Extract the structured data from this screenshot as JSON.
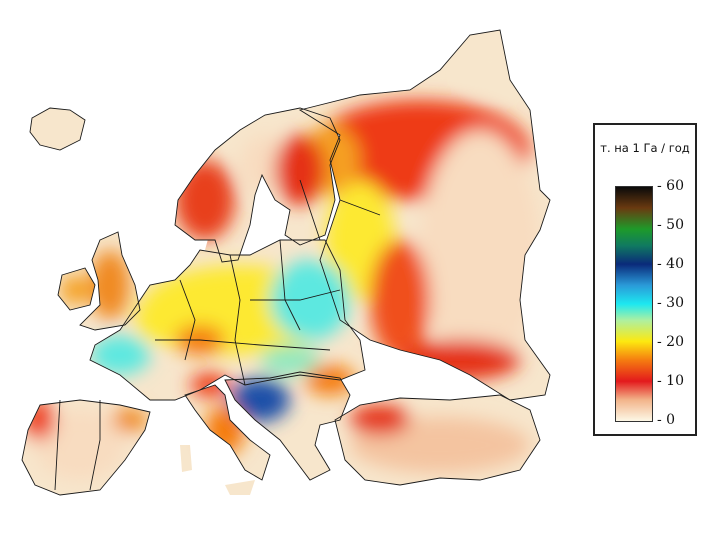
{
  "legend": {
    "title": "т. на 1 Га / год",
    "ticks": [
      "- 60",
      "- 50",
      "- 40",
      "- 30",
      "- 20",
      "- 10",
      "- 0"
    ],
    "tick_values": [
      60,
      50,
      40,
      30,
      20,
      10,
      0
    ],
    "colorscale": [
      "#fbf3dc",
      "#f2b48a",
      "#e31a1c",
      "#f57c10",
      "#fde910",
      "#aef0a0",
      "#1de8f0",
      "#1f6fc0",
      "#0a2a7a",
      "#0f8a40",
      "#1e9a2a",
      "#6a3a10",
      "#0a0a0a"
    ]
  },
  "map": {
    "region": "Europe",
    "land_color": "#f7e6cc",
    "border_color": "#1a1a1a"
  }
}
